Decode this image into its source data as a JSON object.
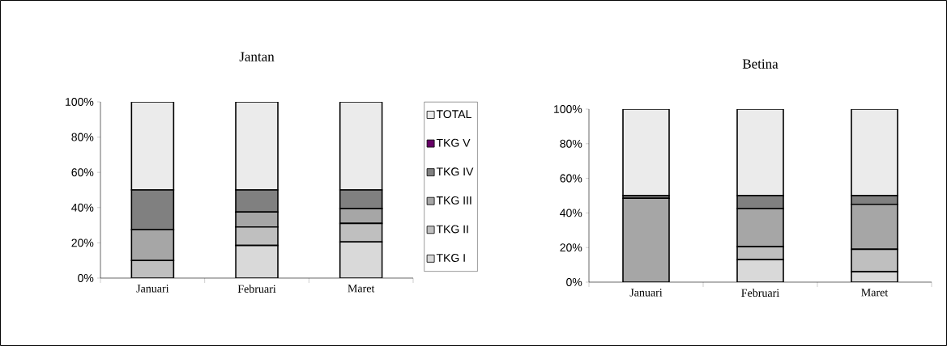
{
  "chart_data": [
    {
      "type": "bar",
      "stacked": true,
      "title": "Jantan",
      "categories": [
        "Januari",
        "Februari",
        "Maret"
      ],
      "series": [
        {
          "name": "TKG I",
          "color": "#d9d9d9",
          "values": [
            0,
            18.5,
            20.5
          ]
        },
        {
          "name": "TKG II",
          "color": "#bfbfbf",
          "values": [
            10,
            10.5,
            10.5
          ]
        },
        {
          "name": "TKG III",
          "color": "#a6a6a6",
          "values": [
            17.5,
            8.5,
            8.5
          ]
        },
        {
          "name": "TKG IV",
          "color": "#808080",
          "values": [
            22.5,
            12.5,
            10.5
          ]
        },
        {
          "name": "TKG V",
          "color": "#660066",
          "values": [
            0,
            0,
            0
          ]
        },
        {
          "name": "TOTAL",
          "color": "#ebebeb",
          "values": [
            50,
            50,
            50
          ]
        }
      ],
      "ylim": [
        0,
        100
      ],
      "yticks": [
        {
          "value": 0,
          "label": "0%"
        },
        {
          "value": 20,
          "label": "20%"
        },
        {
          "value": 40,
          "label": "40%"
        },
        {
          "value": 60,
          "label": "60%"
        },
        {
          "value": 80,
          "label": "80%"
        },
        {
          "value": 100,
          "label": "100%"
        }
      ],
      "legend": "right"
    },
    {
      "type": "bar",
      "stacked": true,
      "title": "Betina",
      "categories": [
        "Januari",
        "Februari",
        "Maret"
      ],
      "series": [
        {
          "color": "#d9d9d9",
          "values": [
            0,
            13,
            6
          ]
        },
        {
          "color": "#bfbfbf",
          "values": [
            0,
            7.5,
            13
          ]
        },
        {
          "color": "#a6a6a6",
          "values": [
            48.5,
            22,
            26
          ]
        },
        {
          "color": "#808080",
          "values": [
            1.5,
            7.5,
            5
          ]
        },
        {
          "color": "#660066",
          "values": [
            0,
            0,
            0
          ]
        },
        {
          "color": "#ebebeb",
          "values": [
            50,
            50,
            50
          ]
        }
      ],
      "ylim": [
        0,
        100
      ],
      "yticks": [
        {
          "value": 0,
          "label": "0%"
        },
        {
          "value": 20,
          "label": "20%"
        },
        {
          "value": 40,
          "label": "40%"
        },
        {
          "value": 60,
          "label": "60%"
        },
        {
          "value": 80,
          "label": "80%"
        },
        {
          "value": 100,
          "label": "100%"
        }
      ]
    }
  ]
}
